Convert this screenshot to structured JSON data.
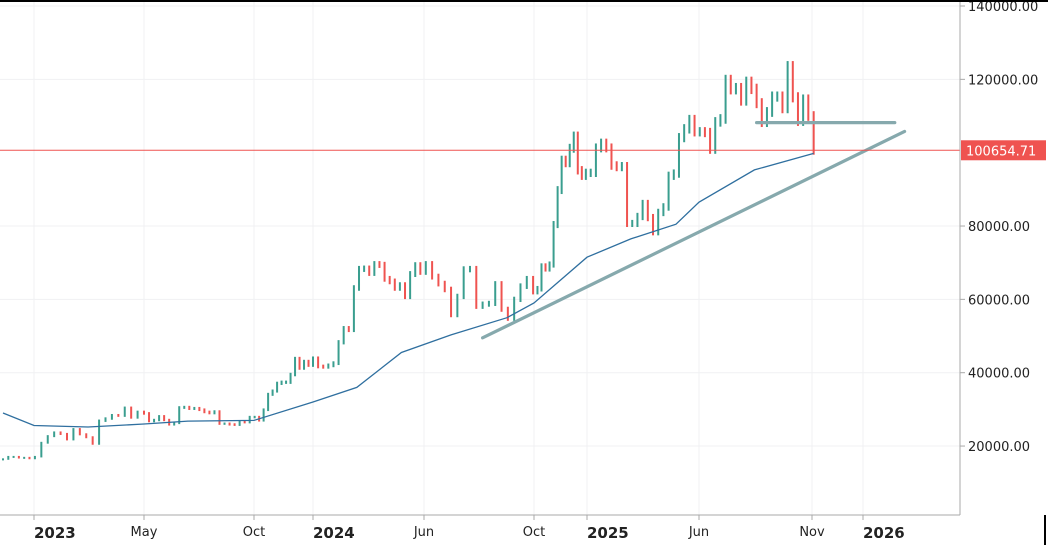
{
  "chart_data": {
    "type": "bar",
    "subtype": "weekly-price-bars",
    "interval": "1W",
    "start_week": "2022-11-21",
    "closes": [
      16450,
      17100,
      17100,
      16800,
      16850,
      16600,
      17100,
      20900,
      22700,
      23700,
      23300,
      21800,
      24600,
      23200,
      22400,
      20600,
      26900,
      27500,
      28400,
      28300,
      30400,
      27800,
      29300,
      28900,
      26800,
      27100,
      28100,
      27100,
      25900,
      26300,
      30500,
      30600,
      30200,
      30300,
      29900,
      29300,
      29000,
      29400,
      26100,
      26100,
      25900,
      25800,
      26600,
      26500,
      27900,
      27900,
      27000,
      29900,
      34100,
      35000,
      37100,
      37400,
      37400,
      39500,
      43800,
      41300,
      43000,
      42100,
      43900,
      41700,
      41600,
      42000,
      42600,
      48300,
      52100,
      51700,
      63100,
      68300,
      68400,
      67200,
      69600,
      69400,
      65600,
      64900,
      63100,
      63900,
      60800,
      66900,
      69300,
      67500,
      69600,
      66200,
      64300,
      62700,
      55800,
      60800,
      68200,
      68300,
      58100,
      58700,
      58900,
      64200,
      57300,
      54800,
      60000,
      63600,
      65600,
      62100,
      62900,
      69000,
      68400,
      69500,
      80400,
      89800,
      98000,
      97200,
      101200,
      104500,
      95200,
      93700,
      94500,
      94500,
      101300,
      102600,
      101300,
      96500,
      96100,
      96300,
      80700,
      80700,
      82600,
      86100,
      82300,
      78400,
      83700,
      85200,
      93700,
      94300,
      104100,
      106500,
      109000,
      105700,
      105700,
      105500,
      100900,
      108400,
      109200,
      119800,
      117300,
      117600,
      114200,
      119300,
      117400,
      113500,
      108300,
      111100,
      115300,
      115300,
      112100,
      123500,
      115100,
      108600,
      114500,
      110000,
      100654.71
    ],
    "moving_average": [
      [
        "2022-11-21",
        29000
      ],
      [
        "2023-01-01",
        25600
      ],
      [
        "2023-03-01",
        25200
      ],
      [
        "2023-05-01",
        26000
      ],
      [
        "2023-07-01",
        26800
      ],
      [
        "2023-10-01",
        27000
      ],
      [
        "2024-01-01",
        32000
      ],
      [
        "2024-03-01",
        36000
      ],
      [
        "2024-05-01",
        45500
      ],
      [
        "2024-07-01",
        50300
      ],
      [
        "2024-09-01",
        55000
      ],
      [
        "2024-10-01",
        59000
      ],
      [
        "2025-01-01",
        71500
      ],
      [
        "2025-03-01",
        76500
      ],
      [
        "2025-05-01",
        80500
      ],
      [
        "2025-06-01",
        86500
      ],
      [
        "2025-08-15",
        95300
      ],
      [
        "2025-11-03",
        99800
      ]
    ],
    "trendlines": [
      {
        "name": "support-trendline",
        "from": [
          "2024-08-05",
          49500
        ],
        "to": [
          "2026-02-25",
          105800
        ]
      },
      {
        "name": "horizontal-resistance",
        "from": [
          "2025-08-18",
          108200
        ],
        "to": [
          "2026-02-12",
          108200
        ]
      }
    ],
    "last_price": 100654.71,
    "last_price_label": "100654.71",
    "y_ticks": [
      140000,
      120000,
      80000,
      60000,
      40000,
      20000
    ],
    "y_tick_labels": [
      "140000.00",
      "120000.00",
      "80000.00",
      "60000.00",
      "40000.00",
      "20000.00"
    ],
    "x_ticks": [
      {
        "label": "2023",
        "date": "2023-01-01",
        "year": true
      },
      {
        "label": "May",
        "date": "2023-05-01",
        "year": false
      },
      {
        "label": "Oct",
        "date": "2023-10-01",
        "year": false
      },
      {
        "label": "2024",
        "date": "2024-01-01",
        "year": true
      },
      {
        "label": "Jun",
        "date": "2024-06-01",
        "year": false
      },
      {
        "label": "Oct",
        "date": "2024-10-01",
        "year": false
      },
      {
        "label": "2025",
        "date": "2025-01-01",
        "year": true
      },
      {
        "label": "Jun",
        "date": "2025-06-01",
        "year": false
      },
      {
        "label": "Nov",
        "date": "2025-11-01",
        "year": false
      },
      {
        "label": "2026",
        "date": "2026-01-01",
        "year": true
      }
    ],
    "ylim": [
      0,
      140000
    ],
    "grid": true,
    "colors": {
      "up": "#3a9e8f",
      "down": "#ef5350",
      "ma": "#2f6f9f",
      "trendline": "#86a9ad",
      "last_price": "#ef5350",
      "grid": "#f0f1f3"
    }
  }
}
